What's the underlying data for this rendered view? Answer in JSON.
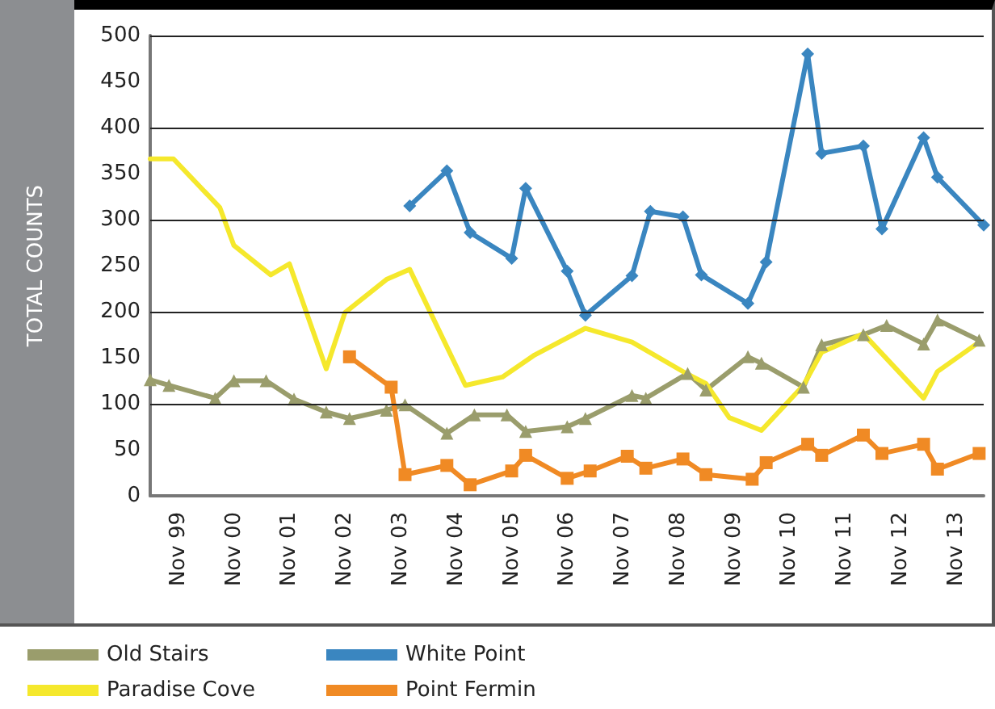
{
  "chart_data": {
    "type": "line",
    "ylabel": "TOTAL COUNTS",
    "xlim": [
      "1999-05",
      "2014-05"
    ],
    "xticks": [
      {
        "value": "1999-11",
        "label": "Nov 99"
      },
      {
        "value": "2000-11",
        "label": "Nov 00"
      },
      {
        "value": "2001-11",
        "label": "Nov 01"
      },
      {
        "value": "2002-11",
        "label": "Nov 02"
      },
      {
        "value": "2003-11",
        "label": "Nov 03"
      },
      {
        "value": "2004-11",
        "label": "Nov 04"
      },
      {
        "value": "2005-11",
        "label": "Nov 05"
      },
      {
        "value": "2006-11",
        "label": "Nov 06"
      },
      {
        "value": "2007-11",
        "label": "Nov 07"
      },
      {
        "value": "2008-11",
        "label": "Nov 08"
      },
      {
        "value": "2009-11",
        "label": "Nov 09"
      },
      {
        "value": "2010-11",
        "label": "Nov 10"
      },
      {
        "value": "2011-11",
        "label": "Nov 11"
      },
      {
        "value": "2012-11",
        "label": "Nov 12"
      },
      {
        "value": "2013-11",
        "label": "Nov 13"
      }
    ],
    "ylim": [
      0,
      500
    ],
    "yticks": [
      0,
      50,
      100,
      150,
      200,
      250,
      300,
      350,
      400,
      450,
      500
    ],
    "grid": "y",
    "legend": "bottom left",
    "line_style": "solid",
    "series": [
      {
        "name": "Old Stairs",
        "color": "#9a9d6c",
        "marker": "triangle",
        "x": [
          "1999-05",
          "1999-09",
          "2000-07",
          "2000-11",
          "2001-06",
          "2001-12",
          "2002-07",
          "2002-12",
          "2003-08",
          "2003-12",
          "2004-09",
          "2005-03",
          "2005-10",
          "2006-02",
          "2006-11",
          "2007-03",
          "2008-01",
          "2008-04",
          "2009-01",
          "2009-05",
          "2010-02",
          "2010-05",
          "2011-02",
          "2011-06",
          "2012-03",
          "2012-08",
          "2013-04",
          "2013-07",
          "2014-04"
        ],
        "values": [
          126,
          120,
          106,
          125,
          125,
          105,
          91,
          84,
          93,
          99,
          68,
          88,
          88,
          70,
          75,
          84,
          109,
          106,
          133,
          115,
          151,
          144,
          118,
          164,
          175,
          185,
          165,
          191,
          169
        ]
      },
      {
        "name": "White Point",
        "color": "#3a86c0",
        "marker": "diamond",
        "x": [
          "2004-01",
          "2004-09",
          "2005-02",
          "2005-11",
          "2006-02",
          "2006-11",
          "2007-03",
          "2008-01",
          "2008-05",
          "2008-12",
          "2009-04",
          "2010-02",
          "2010-06",
          "2011-03",
          "2011-06",
          "2012-03",
          "2012-07",
          "2013-04",
          "2013-07",
          "2014-05"
        ],
        "values": [
          315,
          353,
          286,
          258,
          334,
          244,
          196,
          239,
          309,
          303,
          240,
          209,
          254,
          480,
          372,
          380,
          290,
          389,
          346,
          294
        ]
      },
      {
        "name": "Paradise Cove",
        "color": "#f5e82c",
        "marker": "none",
        "x": [
          "1999-05",
          "1999-10",
          "2000-08",
          "2000-11",
          "2001-07",
          "2001-11",
          "2002-07",
          "2002-11",
          "2003-08",
          "2004-01",
          "2005-01",
          "2005-09",
          "2006-04",
          "2007-03",
          "2008-01",
          "2009-01",
          "2009-05",
          "2009-10",
          "2010-05",
          "2011-02",
          "2011-06",
          "2012-03",
          "2013-04",
          "2013-07",
          "2014-04"
        ],
        "values": [
          366,
          366,
          313,
          272,
          240,
          252,
          138,
          199,
          235,
          246,
          120,
          129,
          153,
          182,
          167,
          132,
          122,
          85,
          71,
          120,
          156,
          176,
          106,
          135,
          167
        ]
      },
      {
        "name": "Point Fermin",
        "color": "#f08a24",
        "marker": "square",
        "x": [
          "2002-12",
          "2003-09",
          "2003-12",
          "2004-09",
          "2005-02",
          "2005-11",
          "2006-02",
          "2006-11",
          "2007-04",
          "2007-12",
          "2008-04",
          "2008-12",
          "2009-05",
          "2010-03",
          "2010-06",
          "2011-03",
          "2011-06",
          "2012-03",
          "2012-07",
          "2013-04",
          "2013-07",
          "2014-04"
        ],
        "values": [
          151,
          118,
          23,
          33,
          12,
          27,
          44,
          19,
          27,
          43,
          30,
          40,
          23,
          18,
          36,
          56,
          44,
          66,
          46,
          56,
          29,
          46
        ]
      }
    ]
  }
}
